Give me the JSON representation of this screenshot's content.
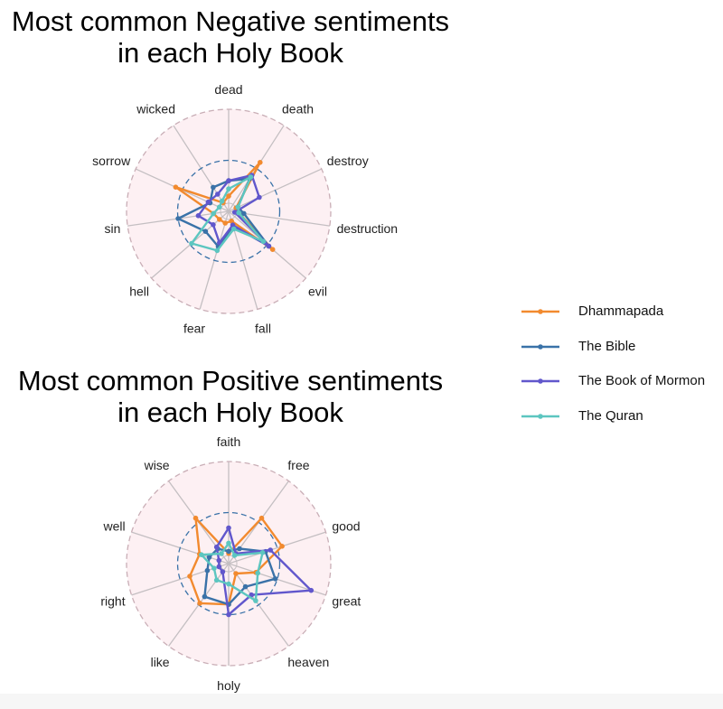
{
  "colors": {
    "Dhammapada": "#F28A2E",
    "The Bible": "#3A72A8",
    "The Book of Mormon": "#6157CC",
    "The Quran": "#5CC6C0",
    "panel_fill": "#FDF0F3",
    "spoke": "#C4BFC2",
    "outer_ring": "#C9AEB6",
    "inner_ring": "#3A72A8"
  },
  "legend": [
    {
      "label": "Dhammapada",
      "color": "#F28A2E"
    },
    {
      "label": "The Bible",
      "color": "#3A72A8"
    },
    {
      "label": "The Book of Mormon",
      "color": "#6157CC"
    },
    {
      "label": "The Quran",
      "color": "#5CC6C0"
    }
  ],
  "chart_data": [
    {
      "type": "radar",
      "title": "Most common Negative sentiments\nin each Holy Book",
      "axes": [
        "dead",
        "death",
        "destroy",
        "destruction",
        "evil",
        "fall",
        "fear",
        "hell",
        "sin",
        "sorrow",
        "wicked"
      ],
      "rlim": [
        0,
        1
      ],
      "reference_ring": 0.5,
      "grid": true,
      "series": [
        {
          "name": "Dhammapada",
          "values": [
            0.15,
            0.57,
            0.08,
            0.1,
            0.57,
            0.1,
            0.12,
            0.12,
            0.15,
            0.57,
            0.1
          ]
        },
        {
          "name": "The Bible",
          "values": [
            0.3,
            0.38,
            0.1,
            0.15,
            0.52,
            0.15,
            0.36,
            0.3,
            0.5,
            0.2,
            0.28
          ]
        },
        {
          "name": "The Book of Mormon",
          "values": [
            0.3,
            0.42,
            0.33,
            0.06,
            0.52,
            0.14,
            0.32,
            0.2,
            0.3,
            0.22,
            0.2
          ]
        },
        {
          "name": "The Quran",
          "values": [
            0.22,
            0.4,
            0.1,
            0.1,
            0.45,
            0.18,
            0.4,
            0.48,
            0.15,
            0.1,
            0.12
          ]
        }
      ]
    },
    {
      "type": "radar",
      "title": "Most common Positive sentiments\nin each Holy Book",
      "axes": [
        "faith",
        "free",
        "good",
        "great",
        "heaven",
        "holy",
        "like",
        "right",
        "well",
        "wise"
      ],
      "rlim": [
        0,
        1
      ],
      "reference_ring": 0.5,
      "grid": true,
      "series": [
        {
          "name": "Dhammapada",
          "values": [
            0.1,
            0.55,
            0.55,
            0.28,
            0.12,
            0.4,
            0.48,
            0.4,
            0.3,
            0.55
          ]
        },
        {
          "name": "The Bible",
          "values": [
            0.12,
            0.18,
            0.38,
            0.48,
            0.28,
            0.4,
            0.4,
            0.22,
            0.2,
            0.18
          ]
        },
        {
          "name": "The Book of Mormon",
          "values": [
            0.35,
            0.12,
            0.43,
            0.85,
            0.38,
            0.5,
            0.1,
            0.1,
            0.1,
            0.2
          ]
        },
        {
          "name": "The Quran",
          "values": [
            0.2,
            0.1,
            0.35,
            0.3,
            0.45,
            0.2,
            0.2,
            0.15,
            0.28,
            0.12
          ]
        }
      ]
    }
  ]
}
